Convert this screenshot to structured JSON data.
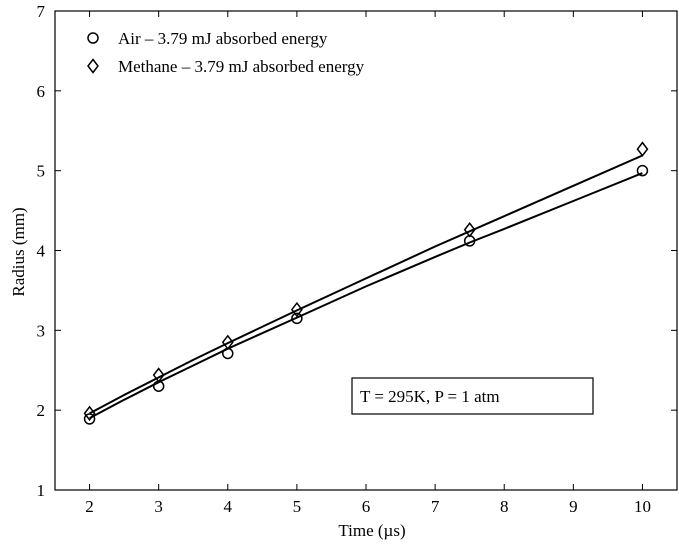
{
  "chart_data": {
    "type": "scatter",
    "title": "",
    "xlabel": "Time (µs)",
    "ylabel": "Radius (mm)",
    "xlim": [
      1.5,
      10.5
    ],
    "ylim": [
      1,
      7
    ],
    "xticks": [
      2,
      3,
      4,
      5,
      6,
      7,
      8,
      9,
      10
    ],
    "yticks": [
      1,
      2,
      3,
      4,
      5,
      6,
      7
    ],
    "grid": false,
    "legend_position": "top-left",
    "series": [
      {
        "name": "Air – 3.79 mJ absorbed energy",
        "marker": "circle",
        "x": [
          2,
          3,
          4,
          5,
          7.5,
          10
        ],
        "y": [
          1.89,
          2.3,
          2.71,
          3.15,
          4.12,
          5.0
        ],
        "fit": {
          "x": [
            2,
            2.5,
            3,
            3.5,
            4,
            5,
            6,
            7,
            7.5,
            8,
            9,
            10
          ],
          "y": [
            1.9,
            2.13,
            2.35,
            2.56,
            2.77,
            3.16,
            3.55,
            3.92,
            4.1,
            4.27,
            4.62,
            4.97
          ]
        }
      },
      {
        "name": "Methane – 3.79 mJ absorbed energy",
        "marker": "diamond",
        "x": [
          2,
          3,
          4,
          5,
          7.5,
          10
        ],
        "y": [
          1.96,
          2.44,
          2.85,
          3.26,
          4.26,
          5.27
        ],
        "fit": {
          "x": [
            2,
            2.5,
            3,
            3.5,
            4,
            5,
            6,
            7,
            7.5,
            8,
            9,
            10
          ],
          "y": [
            1.96,
            2.19,
            2.41,
            2.63,
            2.84,
            3.25,
            3.65,
            4.05,
            4.24,
            4.43,
            4.81,
            5.19
          ]
        }
      }
    ],
    "annotation": "T = 295K, P = 1 atm"
  }
}
